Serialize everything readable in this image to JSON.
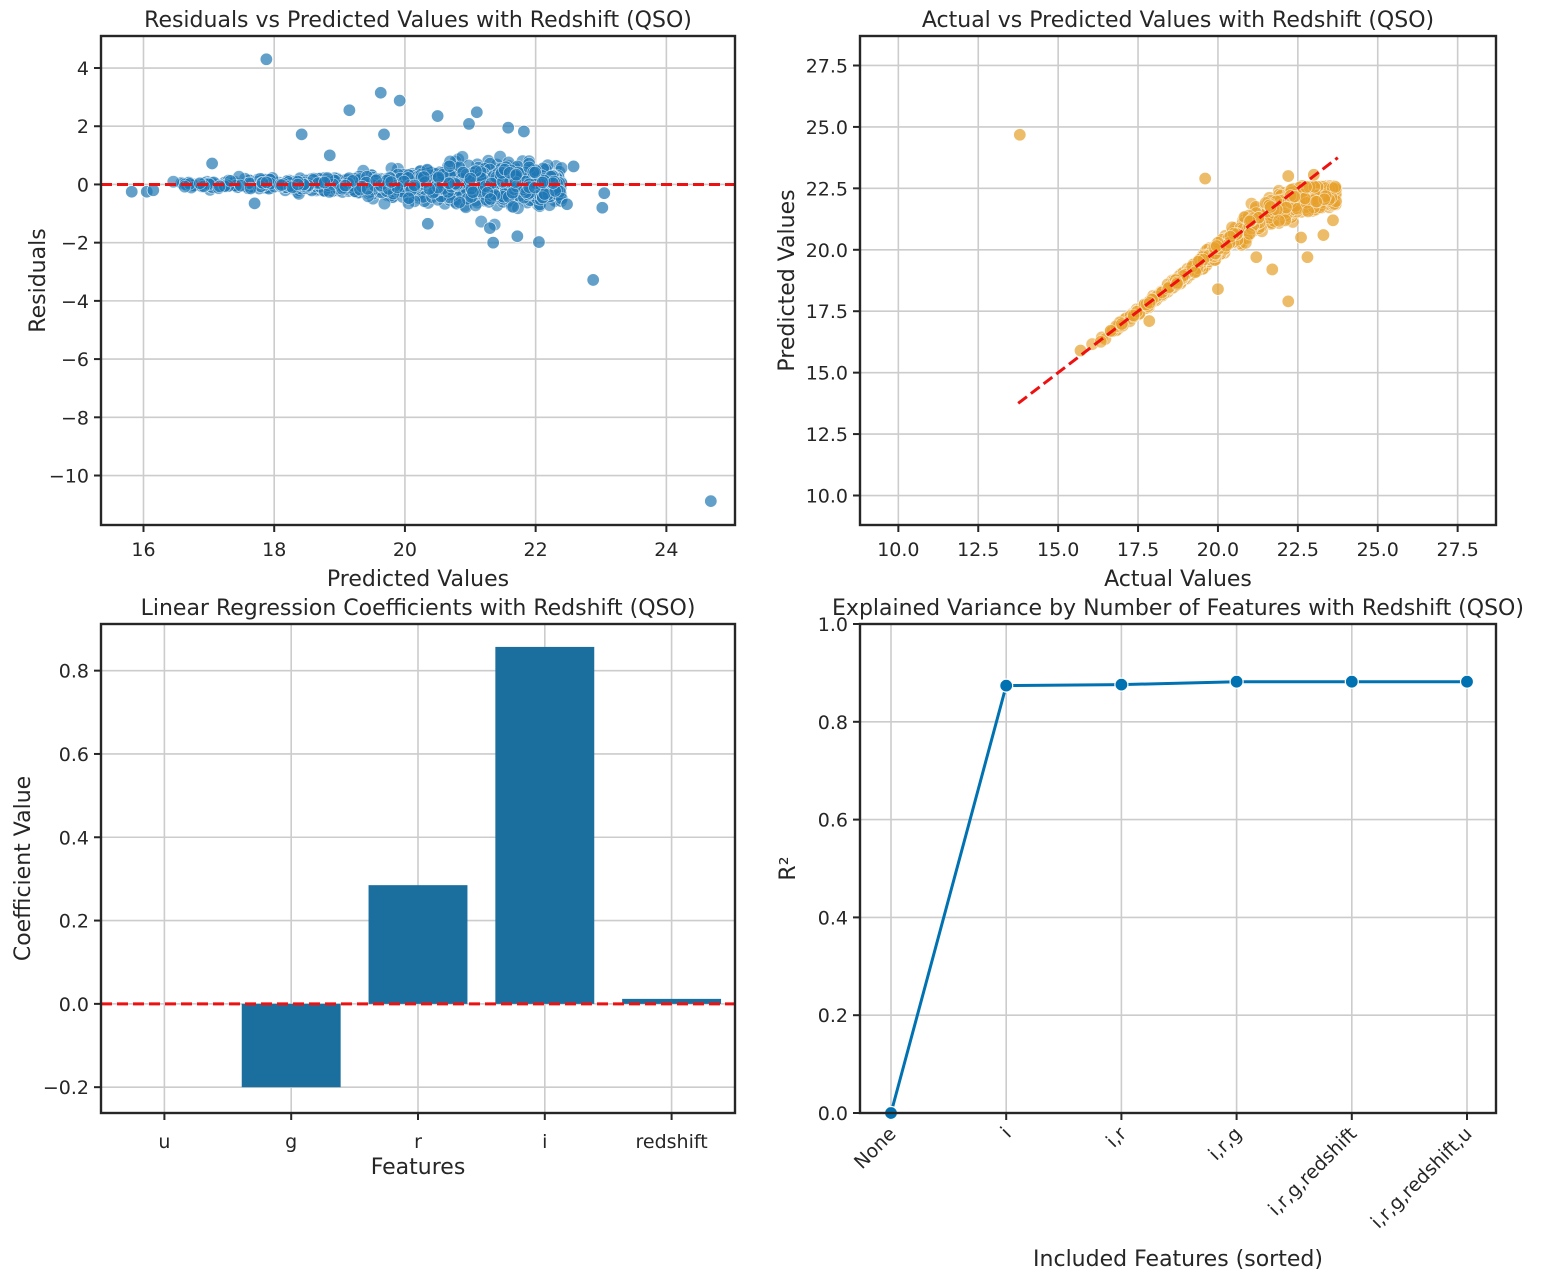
{
  "chart_data": [
    {
      "type": "scatter",
      "title": "Residuals vs Predicted Values with Redshift (QSO)",
      "xlabel": "Predicted Values",
      "ylabel": "Residuals",
      "xlim": [
        15.35,
        25.05
      ],
      "ylim": [
        -11.7,
        5.1
      ],
      "xticks": [
        16,
        18,
        20,
        22,
        24
      ],
      "yticks": [
        4,
        2,
        0,
        -2,
        -4,
        -6,
        -8,
        -10
      ],
      "xtick_labels": [
        "16",
        "18",
        "20",
        "22",
        "24"
      ],
      "ytick_labels": [
        "4",
        "2",
        "0",
        "−2",
        "−4",
        "−6",
        "−8",
        "−10"
      ],
      "grid": true,
      "reference_line": {
        "y": 0,
        "style": "dashed",
        "color": "#ee1111"
      },
      "point_color": "#1f77b4",
      "notable_points": [
        {
          "x": 17.88,
          "y": 4.3
        },
        {
          "x": 19.63,
          "y": 3.15
        },
        {
          "x": 19.92,
          "y": 2.88
        },
        {
          "x": 19.15,
          "y": 2.55
        },
        {
          "x": 21.1,
          "y": 2.48
        },
        {
          "x": 20.5,
          "y": 2.35
        },
        {
          "x": 20.98,
          "y": 2.08
        },
        {
          "x": 18.42,
          "y": 1.72
        },
        {
          "x": 19.68,
          "y": 1.72
        },
        {
          "x": 21.82,
          "y": 1.82
        },
        {
          "x": 21.58,
          "y": 1.95
        },
        {
          "x": 17.05,
          "y": 0.72
        },
        {
          "x": 18.85,
          "y": 1.0
        },
        {
          "x": 22.58,
          "y": 0.62
        },
        {
          "x": 21.3,
          "y": -1.5
        },
        {
          "x": 21.35,
          "y": -2.0
        },
        {
          "x": 21.72,
          "y": -1.78
        },
        {
          "x": 22.05,
          "y": -1.98
        },
        {
          "x": 20.35,
          "y": -1.35
        },
        {
          "x": 22.88,
          "y": -3.28
        },
        {
          "x": 23.02,
          "y": -0.8
        },
        {
          "x": 23.05,
          "y": -0.3
        },
        {
          "x": 24.68,
          "y": -10.88
        },
        {
          "x": 15.82,
          "y": -0.25
        },
        {
          "x": 16.05,
          "y": -0.25
        },
        {
          "x": 16.15,
          "y": -0.2
        },
        {
          "x": 17.7,
          "y": -0.65
        },
        {
          "x": 22.48,
          "y": -0.68
        }
      ],
      "dense_cloud": {
        "x_range": [
          16.3,
          22.4
        ],
        "spread_at_x": [
          [
            16.5,
            0.12
          ],
          [
            18,
            0.2
          ],
          [
            19.5,
            0.35
          ],
          [
            20.5,
            0.55
          ],
          [
            21.5,
            0.85
          ],
          [
            22.2,
            0.6
          ]
        ]
      }
    },
    {
      "type": "scatter",
      "title": "Actual vs Predicted Values with Redshift (QSO)",
      "xlabel": "Actual Values",
      "ylabel": "Predicted Values",
      "xlim": [
        8.8,
        28.7
      ],
      "ylim": [
        8.8,
        28.7
      ],
      "xticks": [
        10.0,
        12.5,
        15.0,
        17.5,
        20.0,
        22.5,
        25.0,
        27.5
      ],
      "yticks": [
        10.0,
        12.5,
        15.0,
        17.5,
        20.0,
        22.5,
        25.0,
        27.5
      ],
      "xtick_labels": [
        "10.0",
        "12.5",
        "15.0",
        "17.5",
        "20.0",
        "22.5",
        "25.0",
        "27.5"
      ],
      "ytick_labels": [
        "10.0",
        "12.5",
        "15.0",
        "17.5",
        "20.0",
        "22.5",
        "25.0",
        "27.5"
      ],
      "grid": true,
      "reference_line": {
        "x": [
          13.75,
          23.75
        ],
        "y": [
          13.75,
          23.75
        ],
        "style": "dashed",
        "color": "#ee1111"
      },
      "point_color": "#e69f2a",
      "notable_points": [
        {
          "x": 13.8,
          "y": 24.68
        },
        {
          "x": 19.6,
          "y": 22.9
        },
        {
          "x": 22.2,
          "y": 17.9
        },
        {
          "x": 20.0,
          "y": 18.4
        },
        {
          "x": 17.85,
          "y": 17.1
        },
        {
          "x": 21.7,
          "y": 19.2
        },
        {
          "x": 22.8,
          "y": 19.7
        },
        {
          "x": 23.6,
          "y": 21.2
        },
        {
          "x": 15.7,
          "y": 15.9
        },
        {
          "x": 22.2,
          "y": 23.0
        },
        {
          "x": 23.0,
          "y": 23.05
        },
        {
          "x": 21.2,
          "y": 19.7
        },
        {
          "x": 22.6,
          "y": 20.5
        },
        {
          "x": 23.3,
          "y": 20.6
        }
      ],
      "dense_cloud": {
        "x_range": [
          16.0,
          23.7
        ],
        "follows": "y≈x"
      }
    },
    {
      "type": "bar",
      "title": "Linear Regression Coefficients with Redshift (QSO)",
      "xlabel": "Features",
      "ylabel": "Coefficient Value",
      "categories": [
        "u",
        "g",
        "r",
        "i",
        "redshift"
      ],
      "values": [
        0.0,
        -0.2,
        0.285,
        0.857,
        0.012
      ],
      "ylim": [
        -0.262,
        0.912
      ],
      "yticks": [
        -0.2,
        0.0,
        0.2,
        0.4,
        0.6,
        0.8
      ],
      "ytick_labels": [
        "−0.2",
        "0.0",
        "0.2",
        "0.4",
        "0.6",
        "0.8"
      ],
      "grid": true,
      "reference_line": {
        "y": 0,
        "style": "dashed",
        "color": "#ee1111"
      },
      "bar_color": "#1a6f9f"
    },
    {
      "type": "line",
      "title": "Explained Variance by Number of Features with Redshift (QSO)",
      "xlabel": "Included Features (sorted)",
      "ylabel": "R²",
      "categories": [
        "None",
        "i",
        "i,r",
        "i,r,g",
        "i,r,g,redshift",
        "i,r,g,redshift,u"
      ],
      "values": [
        0.0,
        0.874,
        0.876,
        0.882,
        0.882,
        0.882
      ],
      "ylim": [
        0.0,
        1.0
      ],
      "yticks": [
        0.0,
        0.2,
        0.4,
        0.6,
        0.8,
        1.0
      ],
      "ytick_labels": [
        "0.0",
        "0.2",
        "0.4",
        "0.6",
        "0.8",
        "1.0"
      ],
      "grid": true,
      "line_color": "#0072b2",
      "markers": true
    }
  ]
}
